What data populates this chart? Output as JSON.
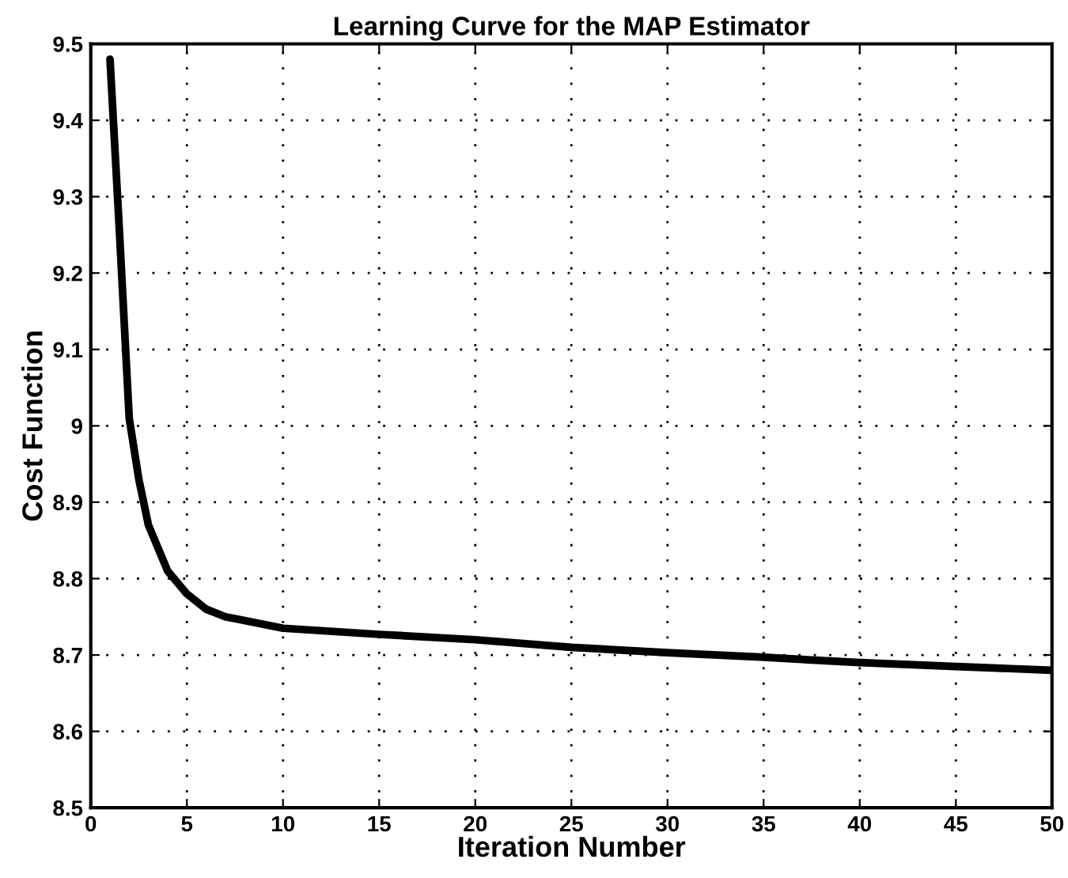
{
  "chart_data": {
    "type": "line",
    "title": "Learning Curve for the MAP Estimator",
    "xlabel": "Iteration Number",
    "ylabel": "Cost Function",
    "series": [
      {
        "color": "#000000",
        "x": [
          1,
          1.5,
          2,
          2.5,
          3,
          4,
          5,
          6,
          7,
          8,
          10,
          15,
          20,
          25,
          30,
          35,
          40,
          45,
          50
        ],
        "values": [
          9.48,
          9.25,
          9.01,
          8.93,
          8.87,
          8.81,
          8.78,
          8.76,
          8.75,
          8.745,
          8.735,
          8.727,
          8.72,
          8.71,
          8.703,
          8.697,
          8.69,
          8.685,
          8.68
        ]
      }
    ],
    "xlim": [
      0,
      50
    ],
    "xticks": [
      0,
      5,
      10,
      15,
      20,
      25,
      30,
      35,
      40,
      45,
      50
    ],
    "ylim": [
      8.5,
      9.5
    ],
    "yticks": [
      {
        "value": 8.5,
        "label": "8.5"
      },
      {
        "value": 8.6,
        "label": "8.6"
      },
      {
        "value": 8.7,
        "label": "8.7"
      },
      {
        "value": 8.8,
        "label": "8.8"
      },
      {
        "value": 8.9,
        "label": "8.9"
      },
      {
        "value": 9,
        "label": "9"
      },
      {
        "value": 9.1,
        "label": "9.1"
      },
      {
        "value": 9.2,
        "label": "9.2"
      },
      {
        "value": 9.3,
        "label": "9.3"
      },
      {
        "value": 9.4,
        "label": "9.4"
      },
      {
        "value": 9.5,
        "label": "9.5"
      }
    ],
    "grid": true,
    "line_style": "solid",
    "marker": "none"
  }
}
